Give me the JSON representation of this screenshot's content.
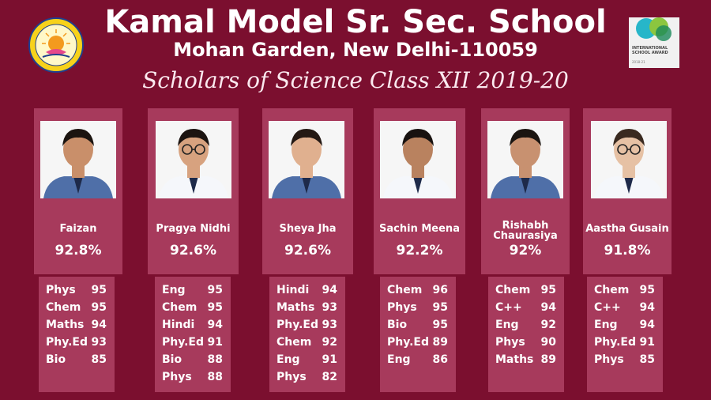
{
  "header": {
    "title": "Kamal Model Sr. Sec. School",
    "address": "Mohan Garden, New Delhi-110059",
    "tagline": "Scholars of Science Class XII 2019-20"
  },
  "award": {
    "text": "INTERNATIONAL SCHOOL AWARD",
    "years": "2018-21"
  },
  "colors": {
    "background": "#7b0f2f",
    "card": "#a73a5c"
  },
  "students": [
    {
      "name": "Faizan",
      "percent": "92.8%",
      "subjects": [
        [
          "Phys",
          "95"
        ],
        [
          "Chem",
          "95"
        ],
        [
          "Maths",
          "94"
        ],
        [
          "Phy.Ed",
          "93"
        ],
        [
          "Bio",
          "85"
        ]
      ]
    },
    {
      "name": "Pragya Nidhi",
      "percent": "92.6%",
      "subjects": [
        [
          "Eng",
          "95"
        ],
        [
          "Chem",
          "95"
        ],
        [
          "Hindi",
          "94"
        ],
        [
          "Phy.Ed",
          "91"
        ],
        [
          "Bio",
          "88"
        ],
        [
          "Phys",
          "88"
        ]
      ]
    },
    {
      "name": "Sheya Jha",
      "percent": "92.6%",
      "subjects": [
        [
          "Hindi",
          "94"
        ],
        [
          "Maths",
          "93"
        ],
        [
          "Phy.Ed",
          "93"
        ],
        [
          "Chem",
          "92"
        ],
        [
          "Eng",
          "91"
        ],
        [
          "Phys",
          "82"
        ]
      ]
    },
    {
      "name": "Sachin Meena",
      "percent": "92.2%",
      "subjects": [
        [
          "Chem",
          "96"
        ],
        [
          "Phys",
          "95"
        ],
        [
          "Bio",
          "95"
        ],
        [
          "Phy.Ed",
          "89"
        ],
        [
          "Eng",
          "86"
        ]
      ]
    },
    {
      "name": "Rishabh Chaurasiya",
      "percent": "92%",
      "subjects": [
        [
          "Chem",
          "95"
        ],
        [
          "C++",
          "94"
        ],
        [
          "Eng",
          "92"
        ],
        [
          "Phys",
          "90"
        ],
        [
          "Maths",
          "89"
        ]
      ]
    },
    {
      "name": "Aastha Gusain",
      "percent": "91.8%",
      "subjects": [
        [
          "Chem",
          "95"
        ],
        [
          "C++",
          "94"
        ],
        [
          "Eng",
          "94"
        ],
        [
          "Phy.Ed",
          "91"
        ],
        [
          "Phys",
          "85"
        ]
      ]
    }
  ]
}
